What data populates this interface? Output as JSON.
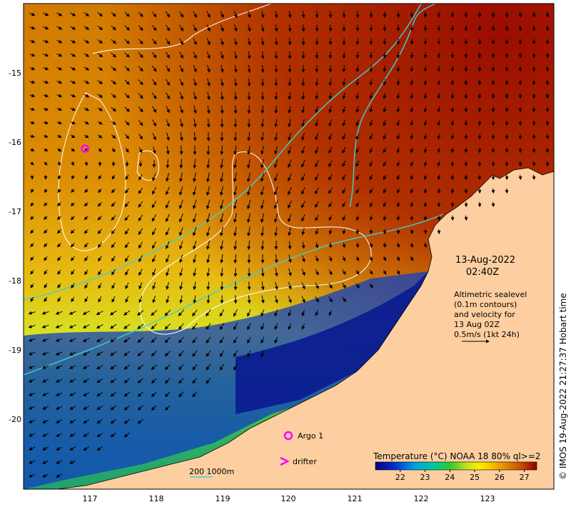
{
  "map": {
    "date": "13-Aug-2022",
    "time": "02:40Z",
    "annotation_lines": [
      "Altimetric sealevel",
      "(0.1m contours)",
      "and velocity for",
      "13 Aug 02Z",
      "0.5m/s (1kt 24h)"
    ],
    "credit": "© IMOS 19-Aug-2022 21:27:37 Hobart time",
    "colorbar": {
      "title": "Temperature (°C) NOAA 18 80% ql>=2",
      "ticks": [
        "22",
        "23",
        "24",
        "25",
        "26",
        "27"
      ],
      "range": [
        21,
        27.5
      ]
    },
    "legend": {
      "argo_label": "Argo 1",
      "drifter_label": "drifter",
      "isobath_label": "200  1000m",
      "marker_color": "#ff00ff",
      "isobath_color": "#40d0d0",
      "contour_color": "#ffffff"
    },
    "axes": {
      "lon_ticks": [
        "117",
        "118",
        "119",
        "120",
        "121",
        "122",
        "123"
      ],
      "lat_ticks": [
        "-15",
        "-16",
        "-17",
        "-18",
        "-19",
        "-20"
      ]
    },
    "colors": {
      "land": "#fdcfa0",
      "warm": "#c86400",
      "hot": "#a01000",
      "cold": "#0a1a90"
    }
  }
}
